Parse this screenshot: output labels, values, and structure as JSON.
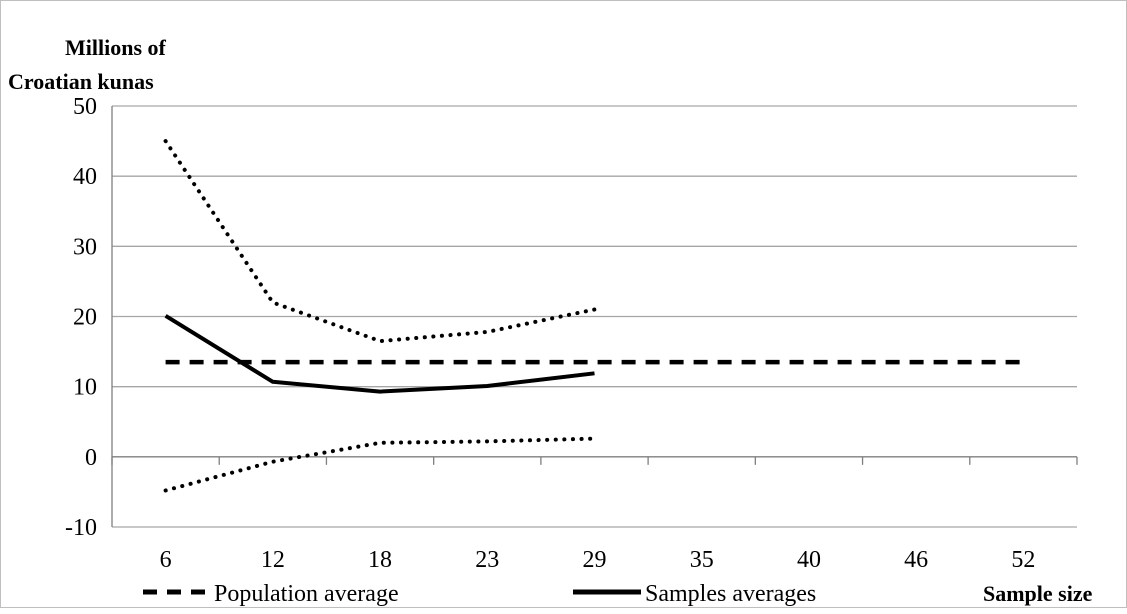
{
  "chart_data": {
    "type": "line",
    "title": "",
    "ylabel_line1": "Millions of",
    "ylabel_line2": "Croatian kunas",
    "xlabel": "Sample size",
    "categories": [
      "6",
      "12",
      "18",
      "23",
      "29",
      "35",
      "40",
      "46",
      "52"
    ],
    "ylim": [
      -10,
      50
    ],
    "yticks": [
      -10,
      0,
      10,
      20,
      30,
      40,
      50
    ],
    "grid": "horizontal",
    "legend_position": "bottom",
    "series": [
      {
        "name": "Population average",
        "style": "dashed",
        "values": [
          13.5,
          13.5,
          13.5,
          13.5,
          13.5,
          13.5,
          13.5,
          13.5,
          13.5
        ]
      },
      {
        "name": "Samples averages",
        "style": "solid",
        "values": [
          20.1,
          10.7,
          9.3,
          10.1,
          11.9,
          null,
          null,
          null,
          null
        ]
      },
      {
        "name": "",
        "style": "dotted",
        "values": [
          45.0,
          22.0,
          16.5,
          17.8,
          21.0,
          null,
          null,
          null,
          null
        ]
      },
      {
        "name": "",
        "style": "dotted",
        "values": [
          -4.8,
          -0.7,
          2.0,
          2.2,
          2.6,
          null,
          null,
          null,
          null
        ]
      }
    ],
    "colors": {
      "lines": "#000000",
      "grid": "#a6a6a6",
      "axis": "#7f7f7f"
    }
  }
}
